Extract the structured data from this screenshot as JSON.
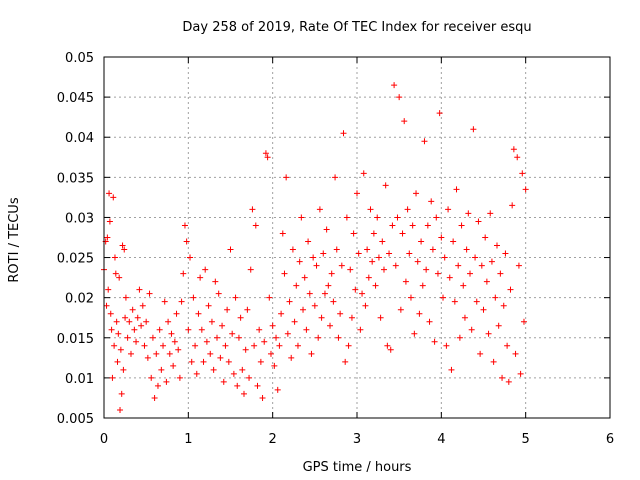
{
  "chart_data": {
    "type": "scatter",
    "title": "Day 258 of 2019, Rate Of TEC Index for receiver esqu",
    "xlabel": "GPS time / hours",
    "ylabel": "ROTI / TECUs",
    "xlim": [
      0,
      6
    ],
    "ylim": [
      0.005,
      0.05
    ],
    "x_ticks": [
      "0",
      "1",
      "2",
      "3",
      "4",
      "5",
      "6"
    ],
    "y_ticks": [
      "0.005",
      "0.01",
      "0.015",
      "0.02",
      "0.025",
      "0.03",
      "0.035",
      "0.04",
      "0.045",
      "0.05"
    ],
    "grid": true,
    "marker": "+",
    "color": "#ff0000",
    "series": [
      {
        "name": "ROTI",
        "points": [
          [
            0.0,
            0.0235
          ],
          [
            0.02,
            0.027
          ],
          [
            0.03,
            0.019
          ],
          [
            0.04,
            0.0275
          ],
          [
            0.05,
            0.021
          ],
          [
            0.06,
            0.033
          ],
          [
            0.07,
            0.0295
          ],
          [
            0.08,
            0.018
          ],
          [
            0.09,
            0.016
          ],
          [
            0.1,
            0.01
          ],
          [
            0.11,
            0.0325
          ],
          [
            0.12,
            0.014
          ],
          [
            0.13,
            0.025
          ],
          [
            0.14,
            0.023
          ],
          [
            0.15,
            0.017
          ],
          [
            0.16,
            0.012
          ],
          [
            0.17,
            0.0155
          ],
          [
            0.18,
            0.0225
          ],
          [
            0.19,
            0.006
          ],
          [
            0.2,
            0.0135
          ],
          [
            0.21,
            0.008
          ],
          [
            0.22,
            0.0265
          ],
          [
            0.23,
            0.011
          ],
          [
            0.24,
            0.026
          ],
          [
            0.25,
            0.0175
          ],
          [
            0.26,
            0.02
          ],
          [
            0.28,
            0.015
          ],
          [
            0.3,
            0.017
          ],
          [
            0.32,
            0.013
          ],
          [
            0.34,
            0.0185
          ],
          [
            0.36,
            0.016
          ],
          [
            0.38,
            0.0145
          ],
          [
            0.4,
            0.0175
          ],
          [
            0.42,
            0.021
          ],
          [
            0.44,
            0.0165
          ],
          [
            0.46,
            0.019
          ],
          [
            0.48,
            0.014
          ],
          [
            0.5,
            0.017
          ],
          [
            0.52,
            0.0125
          ],
          [
            0.54,
            0.0205
          ],
          [
            0.56,
            0.01
          ],
          [
            0.58,
            0.015
          ],
          [
            0.6,
            0.0075
          ],
          [
            0.62,
            0.013
          ],
          [
            0.64,
            0.009
          ],
          [
            0.66,
            0.016
          ],
          [
            0.68,
            0.011
          ],
          [
            0.7,
            0.014
          ],
          [
            0.72,
            0.0195
          ],
          [
            0.74,
            0.0095
          ],
          [
            0.76,
            0.017
          ],
          [
            0.78,
            0.013
          ],
          [
            0.8,
            0.0155
          ],
          [
            0.82,
            0.0115
          ],
          [
            0.84,
            0.0145
          ],
          [
            0.86,
            0.018
          ],
          [
            0.88,
            0.0135
          ],
          [
            0.9,
            0.01
          ],
          [
            0.92,
            0.0195
          ],
          [
            0.94,
            0.023
          ],
          [
            0.96,
            0.029
          ],
          [
            0.98,
            0.027
          ],
          [
            1.0,
            0.016
          ],
          [
            1.02,
            0.025
          ],
          [
            1.04,
            0.012
          ],
          [
            1.06,
            0.02
          ],
          [
            1.08,
            0.014
          ],
          [
            1.1,
            0.0105
          ],
          [
            1.12,
            0.018
          ],
          [
            1.14,
            0.0225
          ],
          [
            1.16,
            0.016
          ],
          [
            1.18,
            0.012
          ],
          [
            1.2,
            0.0235
          ],
          [
            1.22,
            0.0145
          ],
          [
            1.24,
            0.019
          ],
          [
            1.26,
            0.013
          ],
          [
            1.28,
            0.017
          ],
          [
            1.3,
            0.011
          ],
          [
            1.32,
            0.022
          ],
          [
            1.34,
            0.015
          ],
          [
            1.36,
            0.0205
          ],
          [
            1.38,
            0.0125
          ],
          [
            1.4,
            0.0165
          ],
          [
            1.42,
            0.0095
          ],
          [
            1.44,
            0.014
          ],
          [
            1.46,
            0.0185
          ],
          [
            1.48,
            0.012
          ],
          [
            1.5,
            0.026
          ],
          [
            1.52,
            0.0155
          ],
          [
            1.54,
            0.0105
          ],
          [
            1.56,
            0.02
          ],
          [
            1.58,
            0.009
          ],
          [
            1.6,
            0.015
          ],
          [
            1.62,
            0.0175
          ],
          [
            1.64,
            0.011
          ],
          [
            1.66,
            0.008
          ],
          [
            1.68,
            0.0135
          ],
          [
            1.7,
            0.0185
          ],
          [
            1.72,
            0.01
          ],
          [
            1.74,
            0.0235
          ],
          [
            1.76,
            0.031
          ],
          [
            1.78,
            0.014
          ],
          [
            1.8,
            0.029
          ],
          [
            1.82,
            0.009
          ],
          [
            1.84,
            0.016
          ],
          [
            1.86,
            0.012
          ],
          [
            1.88,
            0.0075
          ],
          [
            1.9,
            0.0145
          ],
          [
            1.92,
            0.038
          ],
          [
            1.94,
            0.0375
          ],
          [
            1.96,
            0.02
          ],
          [
            1.98,
            0.013
          ],
          [
            2.0,
            0.0165
          ],
          [
            2.02,
            0.0115
          ],
          [
            2.04,
            0.015
          ],
          [
            2.06,
            0.0085
          ],
          [
            2.08,
            0.014
          ],
          [
            2.1,
            0.018
          ],
          [
            2.12,
            0.028
          ],
          [
            2.14,
            0.023
          ],
          [
            2.16,
            0.035
          ],
          [
            2.18,
            0.0155
          ],
          [
            2.2,
            0.0195
          ],
          [
            2.22,
            0.0125
          ],
          [
            2.24,
            0.026
          ],
          [
            2.26,
            0.017
          ],
          [
            2.28,
            0.0215
          ],
          [
            2.3,
            0.014
          ],
          [
            2.32,
            0.0245
          ],
          [
            2.34,
            0.03
          ],
          [
            2.36,
            0.0185
          ],
          [
            2.38,
            0.0225
          ],
          [
            2.4,
            0.016
          ],
          [
            2.42,
            0.027
          ],
          [
            2.44,
            0.0205
          ],
          [
            2.46,
            0.013
          ],
          [
            2.48,
            0.025
          ],
          [
            2.5,
            0.019
          ],
          [
            2.52,
            0.024
          ],
          [
            2.54,
            0.015
          ],
          [
            2.56,
            0.031
          ],
          [
            2.58,
            0.0175
          ],
          [
            2.6,
            0.0255
          ],
          [
            2.62,
            0.0205
          ],
          [
            2.64,
            0.0285
          ],
          [
            2.66,
            0.0215
          ],
          [
            2.68,
            0.0165
          ],
          [
            2.7,
            0.023
          ],
          [
            2.72,
            0.0195
          ],
          [
            2.74,
            0.035
          ],
          [
            2.76,
            0.026
          ],
          [
            2.78,
            0.015
          ],
          [
            2.8,
            0.018
          ],
          [
            2.82,
            0.024
          ],
          [
            2.84,
            0.0405
          ],
          [
            2.86,
            0.012
          ],
          [
            2.88,
            0.03
          ],
          [
            2.9,
            0.014
          ],
          [
            2.92,
            0.0235
          ],
          [
            2.94,
            0.0175
          ],
          [
            2.96,
            0.028
          ],
          [
            2.98,
            0.021
          ],
          [
            3.0,
            0.033
          ],
          [
            3.02,
            0.0255
          ],
          [
            3.04,
            0.016
          ],
          [
            3.06,
            0.0205
          ],
          [
            3.08,
            0.0355
          ],
          [
            3.1,
            0.019
          ],
          [
            3.12,
            0.026
          ],
          [
            3.14,
            0.0225
          ],
          [
            3.16,
            0.031
          ],
          [
            3.18,
            0.0245
          ],
          [
            3.2,
            0.028
          ],
          [
            3.22,
            0.0215
          ],
          [
            3.24,
            0.03
          ],
          [
            3.26,
            0.025
          ],
          [
            3.28,
            0.0175
          ],
          [
            3.3,
            0.027
          ],
          [
            3.32,
            0.0235
          ],
          [
            3.34,
            0.034
          ],
          [
            3.36,
            0.014
          ],
          [
            3.38,
            0.0255
          ],
          [
            3.4,
            0.0135
          ],
          [
            3.42,
            0.029
          ],
          [
            3.44,
            0.0465
          ],
          [
            3.46,
            0.024
          ],
          [
            3.48,
            0.03
          ],
          [
            3.5,
            0.045
          ],
          [
            3.52,
            0.0185
          ],
          [
            3.54,
            0.028
          ],
          [
            3.56,
            0.042
          ],
          [
            3.58,
            0.022
          ],
          [
            3.6,
            0.031
          ],
          [
            3.62,
            0.0255
          ],
          [
            3.64,
            0.02
          ],
          [
            3.66,
            0.029
          ],
          [
            3.68,
            0.0155
          ],
          [
            3.7,
            0.033
          ],
          [
            3.72,
            0.0245
          ],
          [
            3.74,
            0.018
          ],
          [
            3.76,
            0.027
          ],
          [
            3.78,
            0.0215
          ],
          [
            3.8,
            0.0395
          ],
          [
            3.82,
            0.0235
          ],
          [
            3.84,
            0.029
          ],
          [
            3.86,
            0.017
          ],
          [
            3.88,
            0.032
          ],
          [
            3.9,
            0.026
          ],
          [
            3.92,
            0.0145
          ],
          [
            3.94,
            0.03
          ],
          [
            3.96,
            0.023
          ],
          [
            3.98,
            0.043
          ],
          [
            4.0,
            0.0275
          ],
          [
            4.02,
            0.02
          ],
          [
            4.04,
            0.025
          ],
          [
            4.06,
            0.014
          ],
          [
            4.08,
            0.031
          ],
          [
            4.1,
            0.0225
          ],
          [
            4.12,
            0.011
          ],
          [
            4.14,
            0.027
          ],
          [
            4.16,
            0.0195
          ],
          [
            4.18,
            0.0335
          ],
          [
            4.2,
            0.024
          ],
          [
            4.22,
            0.015
          ],
          [
            4.24,
            0.029
          ],
          [
            4.26,
            0.0215
          ],
          [
            4.28,
            0.0175
          ],
          [
            4.3,
            0.026
          ],
          [
            4.32,
            0.0305
          ],
          [
            4.34,
            0.023
          ],
          [
            4.36,
            0.016
          ],
          [
            4.38,
            0.041
          ],
          [
            4.4,
            0.025
          ],
          [
            4.42,
            0.0195
          ],
          [
            4.44,
            0.0295
          ],
          [
            4.46,
            0.013
          ],
          [
            4.48,
            0.024
          ],
          [
            4.5,
            0.0185
          ],
          [
            4.52,
            0.0275
          ],
          [
            4.54,
            0.022
          ],
          [
            4.56,
            0.0155
          ],
          [
            4.58,
            0.0305
          ],
          [
            4.6,
            0.0245
          ],
          [
            4.62,
            0.012
          ],
          [
            4.64,
            0.02
          ],
          [
            4.66,
            0.0265
          ],
          [
            4.68,
            0.0165
          ],
          [
            4.7,
            0.023
          ],
          [
            4.72,
            0.01
          ],
          [
            4.74,
            0.019
          ],
          [
            4.76,
            0.0255
          ],
          [
            4.78,
            0.014
          ],
          [
            4.8,
            0.0095
          ],
          [
            4.82,
            0.021
          ],
          [
            4.84,
            0.0315
          ],
          [
            4.86,
            0.0385
          ],
          [
            4.88,
            0.013
          ],
          [
            4.9,
            0.0375
          ],
          [
            4.92,
            0.024
          ],
          [
            4.94,
            0.0105
          ],
          [
            4.96,
            0.0355
          ],
          [
            4.98,
            0.017
          ],
          [
            5.0,
            0.0335
          ]
        ]
      }
    ]
  }
}
